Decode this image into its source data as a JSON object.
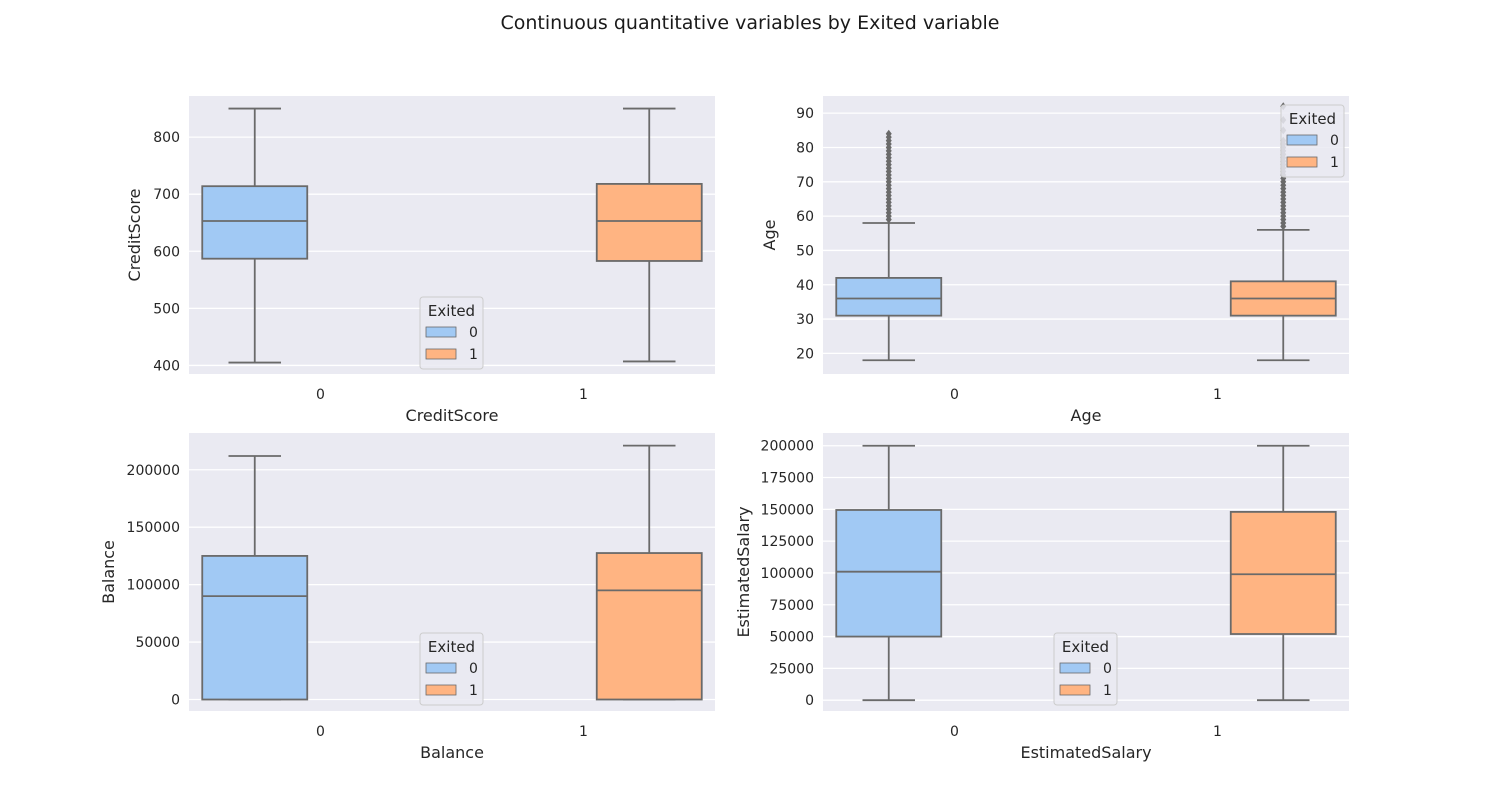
{
  "figure": {
    "title": "Continuous quantitative variables by Exited variable"
  },
  "palette": {
    "background": "#EAEAF2",
    "grid": "#FFFFFF",
    "box_edge": "#6A6A6A",
    "outlier": "#6A6A6A",
    "class_0": "#A1C9F4",
    "class_1": "#FFB482"
  },
  "chart_data": [
    {
      "type": "box",
      "xlabel": "CreditScore",
      "ylabel": "CreditScore",
      "categories": [
        "0",
        "1"
      ],
      "ylim": [
        385,
        872
      ],
      "yticks": [
        400,
        500,
        600,
        700,
        800
      ],
      "grid": true,
      "legend": {
        "title": "Exited",
        "entries": [
          "0",
          "1"
        ],
        "placement": "lower center"
      },
      "boxes": [
        {
          "category": "0",
          "hue": "0",
          "whisker_low": 405,
          "q1": 587,
          "median": 653,
          "q3": 714,
          "whisker_high": 850,
          "outliers": []
        },
        {
          "category": "1",
          "hue": "1",
          "whisker_low": 407,
          "q1": 583,
          "median": 653,
          "q3": 718,
          "whisker_high": 850,
          "outliers": []
        }
      ]
    },
    {
      "type": "box",
      "xlabel": "Age",
      "ylabel": "Age",
      "categories": [
        "0",
        "1"
      ],
      "ylim": [
        14,
        95
      ],
      "yticks": [
        20,
        30,
        40,
        50,
        60,
        70,
        80,
        90
      ],
      "grid": true,
      "legend": {
        "title": "Exited",
        "entries": [
          "0",
          "1"
        ],
        "placement": "upper right"
      },
      "boxes": [
        {
          "category": "0",
          "hue": "0",
          "whisker_low": 18,
          "q1": 31,
          "median": 36,
          "q3": 42,
          "whisker_high": 58,
          "outliers": [
            59,
            60,
            61,
            62,
            63,
            64,
            65,
            66,
            67,
            68,
            69,
            70,
            71,
            72,
            73,
            74,
            75,
            76,
            77,
            78,
            79,
            80,
            81,
            82,
            83,
            84
          ]
        },
        {
          "category": "1",
          "hue": "1",
          "whisker_low": 18,
          "q1": 31,
          "median": 36,
          "q3": 41,
          "whisker_high": 56,
          "outliers": [
            57,
            58,
            59,
            60,
            61,
            62,
            63,
            64,
            65,
            66,
            67,
            68,
            69,
            70,
            71,
            72,
            73,
            74,
            75,
            76,
            77,
            78,
            79,
            80,
            81,
            82,
            85,
            88,
            92
          ]
        }
      ]
    },
    {
      "type": "box",
      "xlabel": "Balance",
      "ylabel": "Balance",
      "categories": [
        "0",
        "1"
      ],
      "ylim": [
        -10000,
        232000
      ],
      "yticks": [
        0,
        50000,
        100000,
        150000,
        200000
      ],
      "grid": true,
      "legend": {
        "title": "Exited",
        "entries": [
          "0",
          "1"
        ],
        "placement": "lower center"
      },
      "boxes": [
        {
          "category": "0",
          "hue": "0",
          "whisker_low": 0,
          "q1": 0,
          "median": 90000,
          "q3": 125000,
          "whisker_high": 212000,
          "outliers": []
        },
        {
          "category": "1",
          "hue": "1",
          "whisker_low": 0,
          "q1": 0,
          "median": 95000,
          "q3": 127500,
          "whisker_high": 221000,
          "outliers": []
        }
      ]
    },
    {
      "type": "box",
      "xlabel": "EstimatedSalary",
      "ylabel": "EstimatedSalary",
      "categories": [
        "0",
        "1"
      ],
      "ylim": [
        -8500,
        210000
      ],
      "yticks": [
        0,
        25000,
        50000,
        75000,
        100000,
        125000,
        150000,
        175000,
        200000
      ],
      "grid": true,
      "legend": {
        "title": "Exited",
        "entries": [
          "0",
          "1"
        ],
        "placement": "lower center"
      },
      "boxes": [
        {
          "category": "0",
          "hue": "0",
          "whisker_low": 0,
          "q1": 50000,
          "median": 101000,
          "q3": 149500,
          "whisker_high": 200000,
          "outliers": []
        },
        {
          "category": "1",
          "hue": "1",
          "whisker_low": 0,
          "q1": 52000,
          "median": 99000,
          "q3": 148000,
          "whisker_high": 200000,
          "outliers": []
        }
      ]
    }
  ]
}
